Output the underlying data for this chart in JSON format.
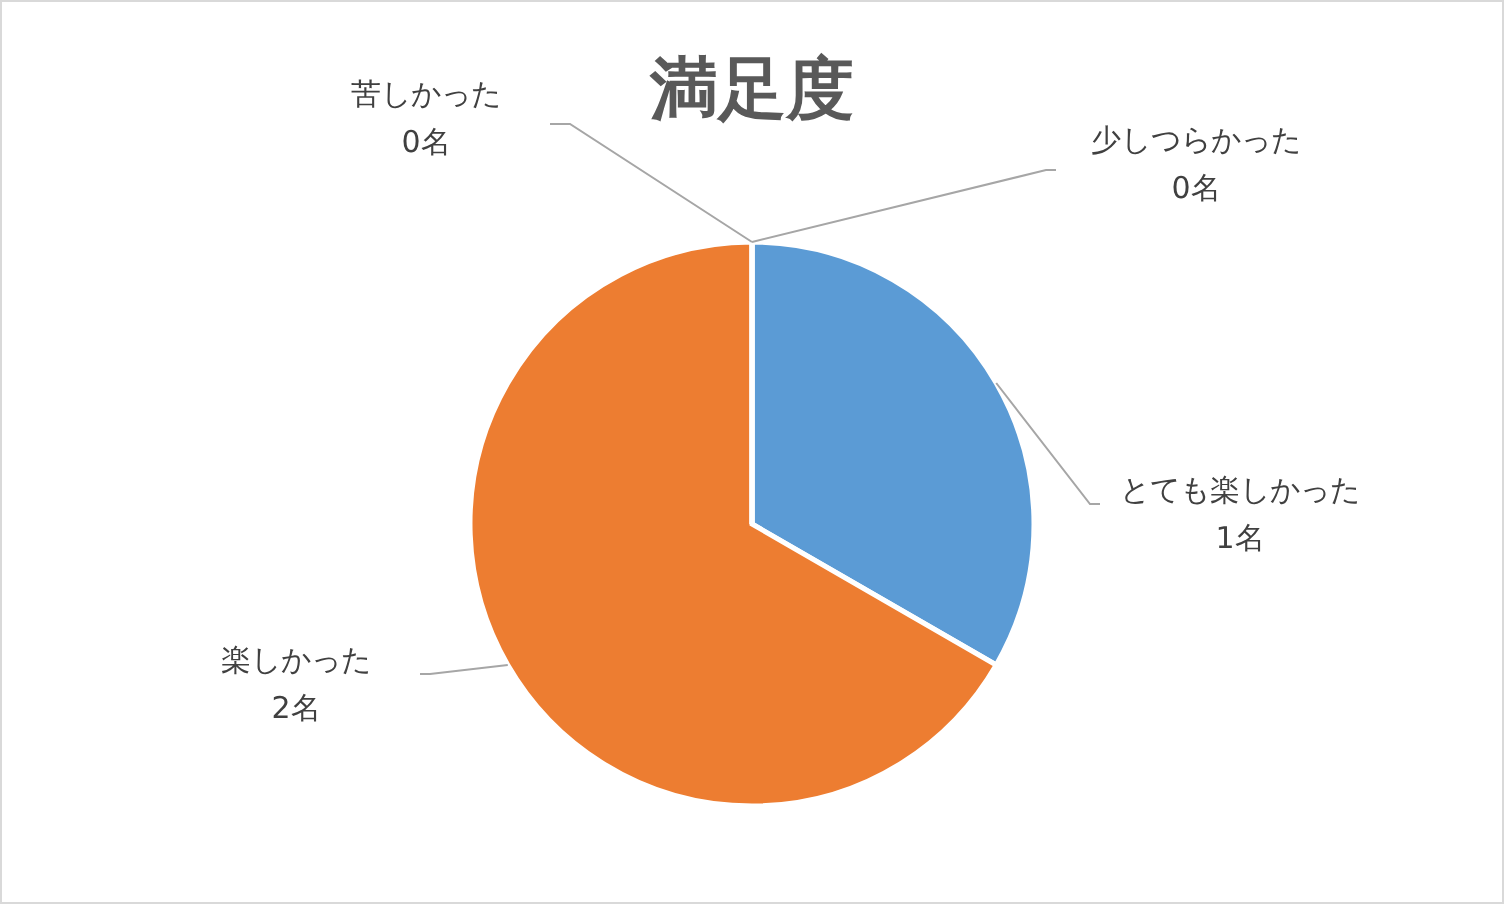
{
  "chart_data": {
    "type": "pie",
    "title": "満足度",
    "categories": [
      "とても楽しかった",
      "楽しかった",
      "苦しかった",
      "少しつらかった"
    ],
    "values": [
      1,
      2,
      0,
      0
    ],
    "colors": [
      "#5b9bd5",
      "#ed7d31",
      "#a5a5a5",
      "#ffc000"
    ],
    "value_labels": [
      "1名",
      "2名",
      "0名",
      "0名"
    ],
    "legend": false
  }
}
